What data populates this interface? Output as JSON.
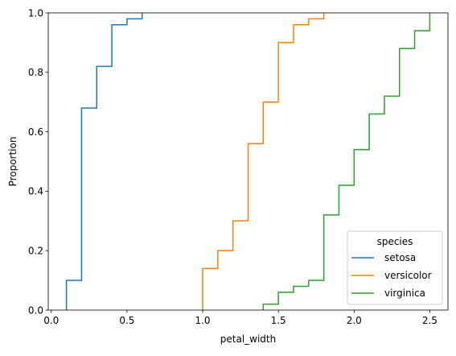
{
  "chart_data": {
    "type": "line",
    "subtype": "ecdf-step",
    "xlabel": "petal_width",
    "ylabel": "Proportion",
    "xlim": [
      -0.02,
      2.62
    ],
    "ylim": [
      0,
      1
    ],
    "xticks": [
      0.0,
      0.5,
      1.0,
      1.5,
      2.0,
      2.5
    ],
    "xtick_labels": [
      "0.0",
      "0.5",
      "1.0",
      "1.5",
      "2.0",
      "2.5"
    ],
    "yticks": [
      0.0,
      0.2,
      0.4,
      0.6,
      0.8,
      1.0
    ],
    "ytick_labels": [
      "0.0",
      "0.2",
      "0.4",
      "0.6",
      "0.8",
      "1.0"
    ],
    "grid": false,
    "legend": {
      "title": "species",
      "placement": "lower-right"
    },
    "series": [
      {
        "name": "setosa",
        "color": "#1f77b4",
        "points": [
          [
            0.1,
            0.0
          ],
          [
            0.1,
            0.1
          ],
          [
            0.2,
            0.1
          ],
          [
            0.2,
            0.68
          ],
          [
            0.3,
            0.68
          ],
          [
            0.3,
            0.82
          ],
          [
            0.4,
            0.82
          ],
          [
            0.4,
            0.96
          ],
          [
            0.5,
            0.96
          ],
          [
            0.5,
            0.98
          ],
          [
            0.6,
            0.98
          ],
          [
            0.6,
            1.0
          ]
        ]
      },
      {
        "name": "versicolor",
        "color": "#ff7f0e",
        "points": [
          [
            1.0,
            0.0
          ],
          [
            1.0,
            0.14
          ],
          [
            1.1,
            0.14
          ],
          [
            1.1,
            0.2
          ],
          [
            1.2,
            0.2
          ],
          [
            1.2,
            0.3
          ],
          [
            1.3,
            0.3
          ],
          [
            1.3,
            0.56
          ],
          [
            1.4,
            0.56
          ],
          [
            1.4,
            0.7
          ],
          [
            1.5,
            0.7
          ],
          [
            1.5,
            0.9
          ],
          [
            1.6,
            0.9
          ],
          [
            1.6,
            0.96
          ],
          [
            1.7,
            0.96
          ],
          [
            1.7,
            0.98
          ],
          [
            1.8,
            0.98
          ],
          [
            1.8,
            1.0
          ]
        ]
      },
      {
        "name": "virginica",
        "color": "#2ca02c",
        "points": [
          [
            1.4,
            0.0
          ],
          [
            1.4,
            0.02
          ],
          [
            1.5,
            0.02
          ],
          [
            1.5,
            0.06
          ],
          [
            1.6,
            0.06
          ],
          [
            1.6,
            0.08
          ],
          [
            1.7,
            0.08
          ],
          [
            1.7,
            0.1
          ],
          [
            1.8,
            0.1
          ],
          [
            1.8,
            0.32
          ],
          [
            1.9,
            0.32
          ],
          [
            1.9,
            0.42
          ],
          [
            2.0,
            0.42
          ],
          [
            2.0,
            0.54
          ],
          [
            2.1,
            0.54
          ],
          [
            2.1,
            0.66
          ],
          [
            2.2,
            0.66
          ],
          [
            2.2,
            0.72
          ],
          [
            2.3,
            0.72
          ],
          [
            2.3,
            0.88
          ],
          [
            2.4,
            0.88
          ],
          [
            2.4,
            0.94
          ],
          [
            2.5,
            0.94
          ],
          [
            2.5,
            1.0
          ]
        ]
      }
    ]
  }
}
